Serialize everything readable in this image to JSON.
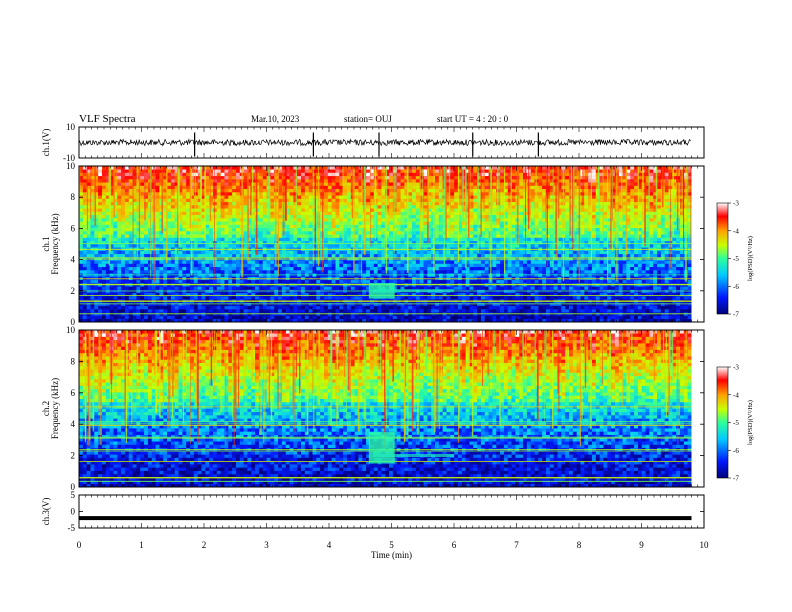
{
  "header": {
    "title": "VLF Spectra",
    "date": "Mar.10, 2023",
    "station": "station= OUJ",
    "start": "start  UT =   4 : 20 : 0"
  },
  "chart_data": {
    "type": "heatmap",
    "x_axis": {
      "label": "Time  (min)",
      "range": [
        0,
        10
      ],
      "ticks": [
        "0",
        "1",
        "2",
        "3",
        "4",
        "5",
        "6",
        "7",
        "8",
        "9",
        "10"
      ]
    },
    "panels": [
      {
        "id": "ch1_waveform",
        "type": "line",
        "ylabel": "ch.1(V)",
        "ylim": [
          -10,
          10
        ],
        "ytick_labels": [
          "10",
          "-10"
        ],
        "baseline": 0,
        "data_end_min": 9.8
      },
      {
        "id": "ch1_spectrogram",
        "type": "heatmap",
        "ylabel": "ch.1\nFrequency  (kHz)",
        "ylabel_lines": [
          "ch.1",
          "Frequency  (kHz)"
        ],
        "ylim": [
          0,
          10
        ],
        "ytick_labels": [
          "10",
          "8",
          "6",
          "4",
          "2",
          "0"
        ],
        "colorbar": {
          "label": "log(PSD)(V²/Hz)",
          "range": [
            -7,
            -3
          ],
          "tick_labels": [
            "-3",
            "-4",
            "-5",
            "-6",
            "-7"
          ]
        },
        "features": {
          "emission_start_min": 4.7,
          "emission_freq_khz": [
            1.5,
            2.5
          ]
        },
        "data_end_min": 9.8
      },
      {
        "id": "ch2_spectrogram",
        "type": "heatmap",
        "ylabel_lines": [
          "ch.2",
          "Frequency  (kHz)"
        ],
        "ylim": [
          0,
          10
        ],
        "ytick_labels": [
          "10",
          "8",
          "6",
          "4",
          "2",
          "0"
        ],
        "colorbar": {
          "label": "log(PSD)(V²/Hz)",
          "range": [
            -7,
            -3
          ],
          "tick_labels": [
            "-3",
            "-4",
            "-5",
            "-6",
            "-7"
          ]
        },
        "features": {
          "emission_start_min": 4.7,
          "emission_freq_khz": [
            1.5,
            3.5
          ]
        },
        "data_end_min": 9.8
      },
      {
        "id": "ch3_waveform",
        "type": "line",
        "ylabel": "ch.3(V)",
        "ylim": [
          -5,
          5
        ],
        "ytick_labels": [
          "5",
          "0",
          "-5"
        ],
        "baseline": -2,
        "data_end_min": 9.8
      }
    ]
  },
  "colors": {
    "colormap": [
      "#00007a",
      "#0018ff",
      "#00c8ff",
      "#2eff9a",
      "#c8ff00",
      "#ffa000",
      "#ff0000",
      "#ffffff"
    ]
  }
}
